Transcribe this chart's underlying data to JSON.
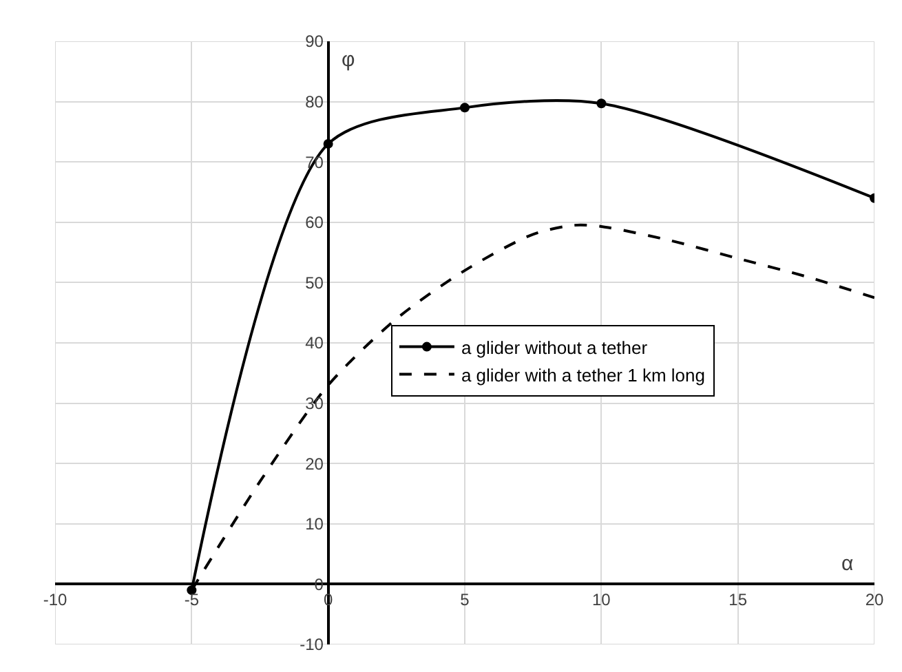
{
  "chart_data": {
    "type": "line",
    "xlabel": "α",
    "ylabel": "φ",
    "xlim": [
      -10,
      20
    ],
    "ylim": [
      -10,
      90
    ],
    "xticks": [
      -10,
      -5,
      0,
      5,
      10,
      15,
      20
    ],
    "yticks": [
      -10,
      0,
      10,
      20,
      30,
      40,
      50,
      60,
      70,
      80,
      90
    ],
    "grid": true,
    "legend": "center",
    "series": [
      {
        "name": "a glider without a tether",
        "color": "#000000",
        "marker": "circle",
        "line_style": "solid",
        "x": [
          -5,
          0,
          5,
          10,
          20
        ],
        "values": [
          -1,
          73,
          79,
          79.7,
          64
        ]
      },
      {
        "name": "a glider with a tether 1 km long",
        "color": "#000000",
        "marker": "none",
        "line_style": "dashed",
        "x": [
          -5,
          -2.5,
          0,
          2.5,
          5,
          7.5,
          9,
          10,
          12.5,
          15,
          17.5,
          20
        ],
        "values": [
          -1,
          17,
          33,
          44,
          52,
          58,
          59.5,
          59.3,
          57,
          54,
          51,
          47.5
        ]
      }
    ]
  }
}
